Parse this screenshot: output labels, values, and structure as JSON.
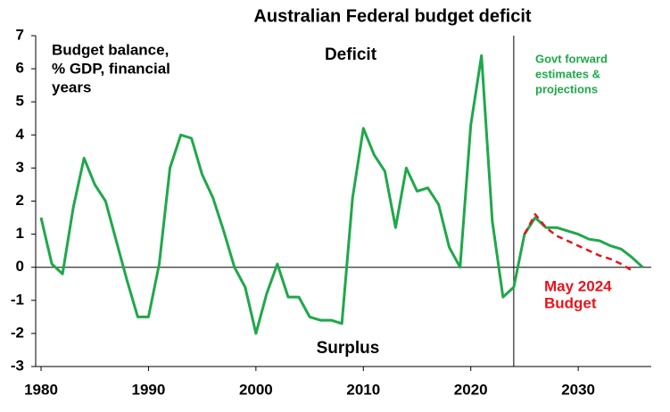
{
  "chart_data": {
    "type": "line",
    "title": "Australian Federal budget deficit",
    "x": [
      1980,
      1981,
      1982,
      1983,
      1984,
      1985,
      1986,
      1987,
      1988,
      1989,
      1990,
      1991,
      1992,
      1993,
      1994,
      1995,
      1996,
      1997,
      1998,
      1999,
      2000,
      2001,
      2002,
      2003,
      2004,
      2005,
      2006,
      2007,
      2008,
      2009,
      2010,
      2011,
      2012,
      2013,
      2014,
      2015,
      2016,
      2017,
      2018,
      2019,
      2020,
      2021,
      2022,
      2023,
      2024,
      2025,
      2026,
      2027,
      2028,
      2029,
      2030,
      2031,
      2032,
      2033,
      2034,
      2035,
      2036
    ],
    "series": [
      {
        "color": "#1fa84a",
        "dash": false,
        "values": [
          1.5,
          0.1,
          -0.2,
          1.8,
          3.3,
          2.5,
          2.0,
          0.8,
          -0.4,
          -1.5,
          -1.5,
          0.1,
          3.0,
          4.0,
          3.9,
          2.8,
          2.1,
          1.1,
          0.0,
          -0.6,
          -2.0,
          -0.8,
          0.1,
          -0.9,
          -0.9,
          -1.5,
          -1.6,
          -1.6,
          -1.7,
          2.1,
          4.2,
          3.4,
          2.9,
          1.2,
          3.0,
          2.3,
          2.4,
          1.9,
          0.6,
          0.0,
          4.3,
          6.4,
          1.4,
          -0.9,
          -0.6,
          1.0,
          1.5,
          1.2,
          1.2,
          1.1,
          1.0,
          0.85,
          0.8,
          0.65,
          0.55,
          0.3,
          0.0
        ]
      },
      {
        "color": "#e8141b",
        "dash": true,
        "values": [
          null,
          null,
          null,
          null,
          null,
          null,
          null,
          null,
          null,
          null,
          null,
          null,
          null,
          null,
          null,
          null,
          null,
          null,
          null,
          null,
          null,
          null,
          null,
          null,
          null,
          null,
          null,
          null,
          null,
          null,
          null,
          null,
          null,
          null,
          null,
          null,
          null,
          null,
          null,
          null,
          null,
          null,
          null,
          null,
          null,
          1.0,
          1.6,
          1.2,
          0.95,
          0.8,
          0.65,
          0.5,
          0.35,
          0.25,
          0.1,
          -0.1,
          null
        ]
      }
    ],
    "xlim": [
      1979.5,
      2036.8
    ],
    "xticks": [
      1980,
      1990,
      2000,
      2010,
      2020,
      2030
    ],
    "ylim": [
      -3,
      7
    ],
    "yticks": [
      -3,
      -2,
      -1,
      0,
      1,
      2,
      3,
      4,
      5,
      6,
      7
    ],
    "vline": 2024,
    "annotations": [
      {
        "lines": [
          "Budget balance,",
          "% GDP, financial",
          "years"
        ],
        "color": "#000000"
      },
      {
        "lines": [
          "Deficit"
        ],
        "color": "#000000"
      },
      {
        "lines": [
          "Surplus"
        ],
        "color": "#000000"
      },
      {
        "lines": [
          "Govt forward",
          "estimates &",
          "projections"
        ],
        "color": "#1fa84a"
      },
      {
        "lines": [
          "May 2024",
          "Budget"
        ],
        "color": "#e8141b"
      }
    ]
  }
}
